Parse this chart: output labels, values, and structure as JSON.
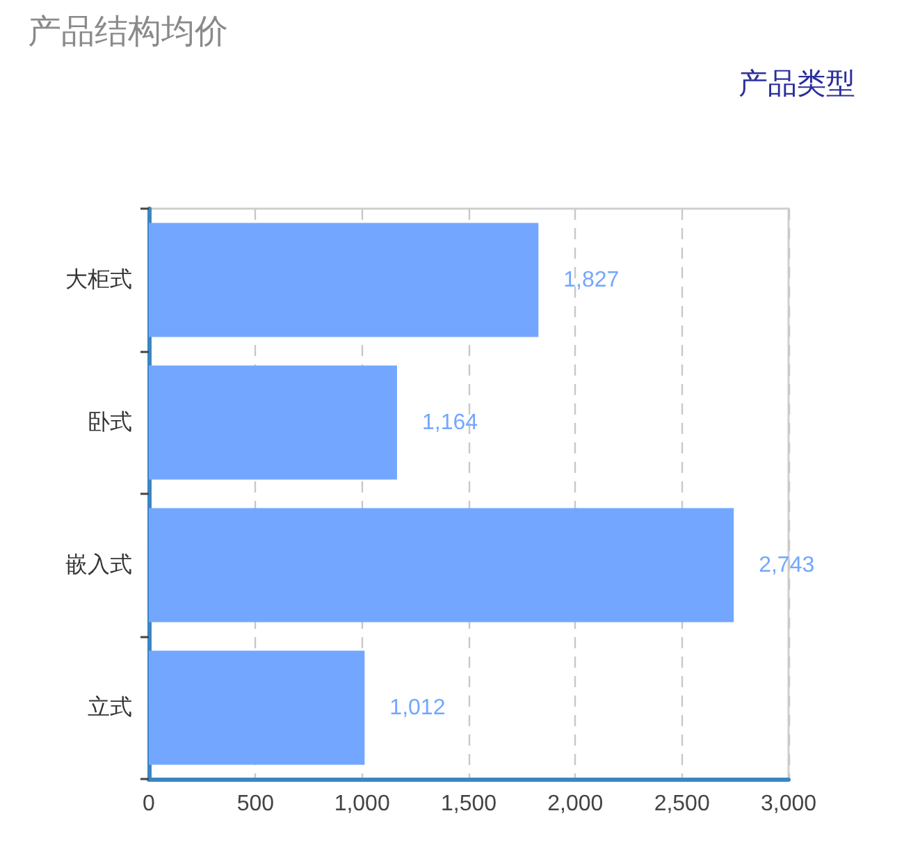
{
  "chart_data": {
    "type": "bar",
    "orientation": "horizontal",
    "title": "产品结构均价",
    "ylabel": "产品类型",
    "categories": [
      "大柜式",
      "卧式",
      "嵌入式",
      "立式"
    ],
    "values": [
      1827,
      1164,
      2743,
      1012
    ],
    "color": "#73a7ff",
    "value_labels": [
      "1,827",
      "1,164",
      "2,743",
      "1,012"
    ],
    "xlim": [
      0,
      3000
    ],
    "xticks": [
      0,
      500,
      {
        "value": 1000,
        "label": "1,000"
      },
      {
        "value": 1500,
        "label": "1,500"
      },
      {
        "value": 2000,
        "label": "2,000"
      },
      {
        "value": 2500,
        "label": "2,500"
      },
      {
        "value": 3000,
        "label": "3,000"
      }
    ],
    "grid": "x"
  }
}
